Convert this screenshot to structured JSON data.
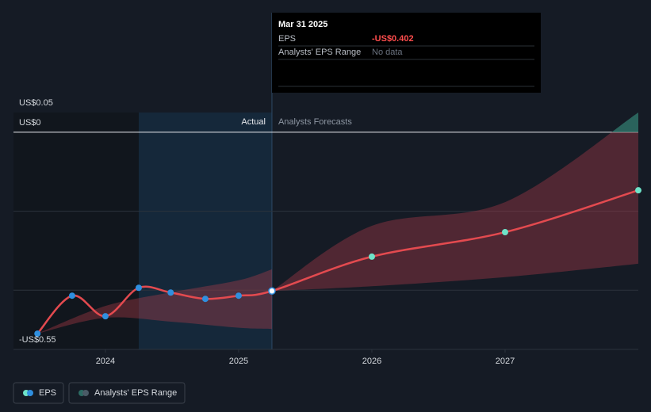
{
  "chart_data": {
    "type": "line",
    "xlim": [
      2023.31,
      2028.0
    ],
    "xticks": [
      2024,
      2025,
      2026,
      2027
    ],
    "ylim": [
      -0.55,
      0.05
    ],
    "yticks": [
      {
        "value": 0.05,
        "label": "US$0.05"
      },
      {
        "value": 0,
        "label": "US$0"
      },
      {
        "value": -0.55,
        "label": "-US$0.55"
      }
    ],
    "grid_values": [
      0,
      -0.2,
      -0.4,
      -0.55
    ],
    "highlight": [
      2024.25,
      2025.25
    ],
    "forecast_start": 2025.25,
    "actual_label": "Actual",
    "forecast_label": "Analysts Forecasts",
    "series": [
      {
        "name": "EPS",
        "color": "#e34a4f",
        "actual_color": "#2f8fdf",
        "forecast_color": "#6fe3c8",
        "x": [
          2023.49,
          2023.75,
          2024.0,
          2024.25,
          2024.49,
          2024.75,
          2025.0,
          2025.25,
          2026.0,
          2027.0,
          2028.0
        ],
        "values": [
          -0.51,
          -0.414,
          -0.466,
          -0.394,
          -0.406,
          -0.422,
          -0.414,
          -0.402,
          -0.315,
          -0.253,
          -0.147
        ]
      },
      {
        "name": "Analysts' EPS Range",
        "color": "#c0404c",
        "upper_color": "#2c6b63",
        "ranges": [
          {
            "x": [
              2023.49,
              2024.0,
              2024.5,
              2025.0,
              2025.25
            ],
            "low": [
              -0.51,
              -0.47,
              -0.48,
              -0.495,
              -0.498
            ],
            "high": [
              -0.51,
              -0.44,
              -0.405,
              -0.375,
              -0.347
            ]
          },
          {
            "x": [
              2025.25,
              2026.0,
              2027.0,
              2028.0
            ],
            "low": [
              -0.402,
              -0.39,
              -0.367,
              -0.333
            ],
            "high": [
              -0.402,
              -0.237,
              -0.177,
              0.05
            ]
          }
        ]
      }
    ],
    "tooltip": {
      "date": "Mar 31 2025",
      "rows": [
        [
          "EPS",
          "-US$0.402"
        ],
        [
          "Analysts' EPS Range",
          "No data"
        ]
      ]
    }
  }
}
